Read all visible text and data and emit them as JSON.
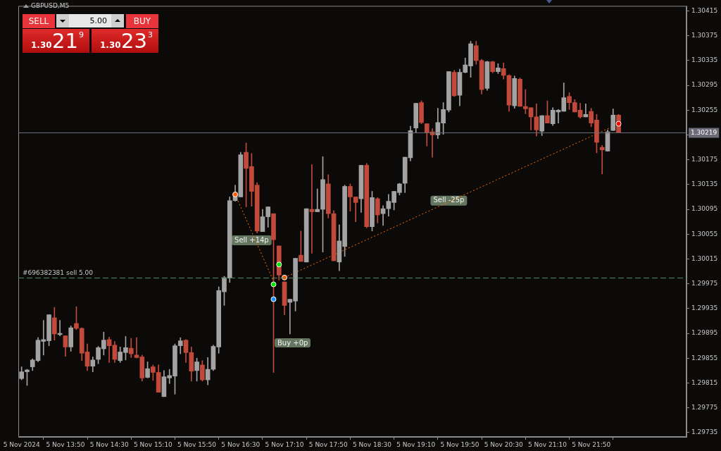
{
  "chart_data": {
    "type": "candlestick",
    "title": "GBPUSD,M5",
    "x": [
      "2024-11-05T13:10",
      "2024-11-05T13:15",
      "2024-11-05T13:20",
      "2024-11-05T13:25",
      "2024-11-05T13:30",
      "2024-11-05T13:35",
      "2024-11-05T13:40",
      "2024-11-05T13:45",
      "2024-11-05T13:50",
      "2024-11-05T13:55",
      "2024-11-05T14:00",
      "2024-11-05T14:05",
      "2024-11-05T14:10",
      "2024-11-05T14:15",
      "2024-11-05T14:20",
      "2024-11-05T14:25",
      "2024-11-05T14:30",
      "2024-11-05T14:35",
      "2024-11-05T14:40",
      "2024-11-05T14:45",
      "2024-11-05T14:50",
      "2024-11-05T14:55",
      "2024-11-05T15:00",
      "2024-11-05T15:05",
      "2024-11-05T15:10",
      "2024-11-05T15:15",
      "2024-11-05T15:20",
      "2024-11-05T15:25",
      "2024-11-05T15:30",
      "2024-11-05T15:35",
      "2024-11-05T15:40",
      "2024-11-05T15:45",
      "2024-11-05T15:50",
      "2024-11-05T15:55",
      "2024-11-05T16:00",
      "2024-11-05T16:05",
      "2024-11-05T16:10",
      "2024-11-05T16:15",
      "2024-11-05T16:20",
      "2024-11-05T16:25",
      "2024-11-05T16:30",
      "2024-11-05T16:35",
      "2024-11-05T16:40",
      "2024-11-05T16:45",
      "2024-11-05T16:50",
      "2024-11-05T16:55",
      "2024-11-05T17:00",
      "2024-11-05T17:05",
      "2024-11-05T17:10",
      "2024-11-05T17:15",
      "2024-11-05T17:20",
      "2024-11-05T17:25",
      "2024-11-05T17:30",
      "2024-11-05T17:35",
      "2024-11-05T17:40",
      "2024-11-05T17:45",
      "2024-11-05T17:50",
      "2024-11-05T17:55",
      "2024-11-05T18:00",
      "2024-11-05T18:05",
      "2024-11-05T18:10",
      "2024-11-05T18:15",
      "2024-11-05T18:20",
      "2024-11-05T18:25",
      "2024-11-05T18:30",
      "2024-11-05T18:35",
      "2024-11-05T18:40",
      "2024-11-05T18:45",
      "2024-11-05T18:50",
      "2024-11-05T18:55",
      "2024-11-05T19:00",
      "2024-11-05T19:05",
      "2024-11-05T19:10",
      "2024-11-05T19:15",
      "2024-11-05T19:20",
      "2024-11-05T19:25",
      "2024-11-05T19:30",
      "2024-11-05T19:35",
      "2024-11-05T19:40",
      "2024-11-05T19:45",
      "2024-11-05T19:50",
      "2024-11-05T19:55",
      "2024-11-05T20:00",
      "2024-11-05T20:05",
      "2024-11-05T20:10",
      "2024-11-05T20:15",
      "2024-11-05T20:20",
      "2024-11-05T20:25",
      "2024-11-05T20:30",
      "2024-11-05T20:35",
      "2024-11-05T20:40",
      "2024-11-05T20:45",
      "2024-11-05T20:50",
      "2024-11-05T20:55",
      "2024-11-05T21:00",
      "2024-11-05T21:05",
      "2024-11-05T21:10",
      "2024-11-05T21:15",
      "2024-11-05T21:20",
      "2024-11-05T21:25",
      "2024-11-05T21:30",
      "2024-11-05T21:35",
      "2024-11-05T21:40",
      "2024-11-05T21:45",
      "2024-11-05T21:50",
      "2024-11-05T21:55",
      "2024-11-05T22:00",
      "2024-11-05T22:05",
      "2024-11-05T22:10",
      "2024-11-05T22:15"
    ],
    "ohlc": [
      [
        1.29822,
        1.29841,
        1.2982,
        1.29833
      ],
      [
        1.29833,
        1.29837,
        1.29811,
        1.29836
      ],
      [
        1.29841,
        1.29854,
        1.29835,
        1.29852
      ],
      [
        1.29851,
        1.29888,
        1.29849,
        1.29884
      ],
      [
        1.29882,
        1.29916,
        1.2986,
        1.29885
      ],
      [
        1.29883,
        1.29925,
        1.29875,
        1.29925
      ],
      [
        1.2992,
        1.29937,
        1.29884,
        1.29894
      ],
      [
        1.29893,
        1.29916,
        1.29891,
        1.29895
      ],
      [
        1.29891,
        1.29891,
        1.29858,
        1.29873
      ],
      [
        1.29873,
        1.29907,
        1.29866,
        1.29904
      ],
      [
        1.29911,
        1.29938,
        1.29901,
        1.29903
      ],
      [
        1.29903,
        1.29904,
        1.29851,
        1.29863
      ],
      [
        1.29865,
        1.29878,
        1.29835,
        1.29842
      ],
      [
        1.29842,
        1.29857,
        1.29833,
        1.29852
      ],
      [
        1.29853,
        1.29874,
        1.29846,
        1.29872
      ],
      [
        1.2987,
        1.29897,
        1.2986,
        1.29884
      ],
      [
        1.29885,
        1.29889,
        1.29848,
        1.29875
      ],
      [
        1.29876,
        1.29882,
        1.29848,
        1.29853
      ],
      [
        1.29851,
        1.29873,
        1.29848,
        1.29865
      ],
      [
        1.29864,
        1.2989,
        1.29852,
        1.29872
      ],
      [
        1.29871,
        1.29887,
        1.29856,
        1.29862
      ],
      [
        1.2986,
        1.29888,
        1.29855,
        1.29856
      ],
      [
        1.29857,
        1.2986,
        1.29818,
        1.29823
      ],
      [
        1.29824,
        1.29849,
        1.29823,
        1.29838
      ],
      [
        1.29841,
        1.29844,
        1.29819,
        1.29832
      ],
      [
        1.29832,
        1.29844,
        1.298,
        1.298
      ],
      [
        1.29793,
        1.29835,
        1.29793,
        1.29825
      ],
      [
        1.29823,
        1.29837,
        1.29814,
        1.29827
      ],
      [
        1.29826,
        1.29878,
        1.29797,
        1.29875
      ],
      [
        1.29875,
        1.29888,
        1.29862,
        1.29883
      ],
      [
        1.29884,
        1.29885,
        1.29848,
        1.29864
      ],
      [
        1.29864,
        1.29873,
        1.29818,
        1.29834
      ],
      [
        1.29835,
        1.29855,
        1.29818,
        1.29849
      ],
      [
        1.29844,
        1.29851,
        1.29818,
        1.2982
      ],
      [
        1.2982,
        1.29856,
        1.29812,
        1.29837
      ],
      [
        1.29837,
        1.29876,
        1.29835,
        1.29874
      ],
      [
        1.29873,
        1.2997,
        1.29863,
        1.29964
      ],
      [
        1.29962,
        1.29987,
        1.2994,
        1.29985
      ],
      [
        1.29984,
        1.30115,
        1.29977,
        1.30109
      ],
      [
        1.30109,
        1.30134,
        1.30108,
        1.30121
      ],
      [
        1.30115,
        1.30187,
        1.30115,
        1.30183
      ],
      [
        1.30187,
        1.30202,
        1.30099,
        1.30161
      ],
      [
        1.30164,
        1.30185,
        1.301,
        1.30124
      ],
      [
        1.30134,
        1.30138,
        1.30057,
        1.3006
      ],
      [
        1.30059,
        1.30095,
        1.30059,
        1.30083
      ],
      [
        1.30083,
        1.30099,
        1.30066,
        1.30099
      ],
      [
        1.30088,
        1.30088,
        1.29832,
        1.30046
      ],
      [
        1.30036,
        1.30036,
        1.29981,
        1.29989
      ],
      [
        1.29978,
        1.29978,
        1.29925,
        1.2994
      ],
      [
        1.29945,
        1.2995,
        1.29894,
        1.2995
      ],
      [
        1.29947,
        1.30016,
        1.29931,
        1.30016
      ],
      [
        1.30021,
        1.3006,
        1.30011,
        1.30011
      ],
      [
        1.3001,
        1.30096,
        1.3001,
        1.30096
      ],
      [
        1.30095,
        1.30167,
        1.30024,
        1.30091
      ],
      [
        1.30091,
        1.30128,
        1.30091,
        1.30095
      ],
      [
        1.30095,
        1.3018,
        1.30026,
        1.30143
      ],
      [
        1.30136,
        1.30151,
        1.30081,
        1.30088
      ],
      [
        1.30088,
        1.30093,
        1.30012,
        1.30012
      ],
      [
        1.3001,
        1.3007,
        1.29996,
        1.30044
      ],
      [
        1.30035,
        1.30134,
        1.30019,
        1.30132
      ],
      [
        1.30132,
        1.30136,
        1.30092,
        1.30115
      ],
      [
        1.30115,
        1.30115,
        1.30075,
        1.30106
      ],
      [
        1.30112,
        1.30166,
        1.3009,
        1.30166
      ],
      [
        1.30166,
        1.30169,
        1.30065,
        1.30067
      ],
      [
        1.30067,
        1.30124,
        1.3006,
        1.30114
      ],
      [
        1.30112,
        1.30114,
        1.30073,
        1.30086
      ],
      [
        1.30088,
        1.30101,
        1.30069,
        1.30096
      ],
      [
        1.30096,
        1.30119,
        1.30084,
        1.30108
      ],
      [
        1.30106,
        1.30124,
        1.30094,
        1.30124
      ],
      [
        1.30122,
        1.30137,
        1.30118,
        1.30136
      ],
      [
        1.30137,
        1.30179,
        1.30122,
        1.30179
      ],
      [
        1.30178,
        1.30229,
        1.30173,
        1.30222
      ],
      [
        1.30226,
        1.30266,
        1.30219,
        1.30266
      ],
      [
        1.30267,
        1.3027,
        1.30233,
        1.30235
      ],
      [
        1.30233,
        1.30233,
        1.30197,
        1.30219
      ],
      [
        1.3022,
        1.30225,
        1.30179,
        1.30215
      ],
      [
        1.30215,
        1.30258,
        1.30209,
        1.30235
      ],
      [
        1.30234,
        1.30267,
        1.30216,
        1.30256
      ],
      [
        1.30255,
        1.30317,
        1.30252,
        1.30317
      ],
      [
        1.30316,
        1.30319,
        1.30277,
        1.30278
      ],
      [
        1.30279,
        1.30321,
        1.30262,
        1.30316
      ],
      [
        1.30316,
        1.30339,
        1.30315,
        1.30328
      ],
      [
        1.30326,
        1.30366,
        1.30308,
        1.30362
      ],
      [
        1.30359,
        1.30366,
        1.30329,
        1.30335
      ],
      [
        1.30335,
        1.30337,
        1.30281,
        1.30288
      ],
      [
        1.3029,
        1.30334,
        1.30287,
        1.30333
      ],
      [
        1.30333,
        1.30334,
        1.30315,
        1.30317
      ],
      [
        1.30317,
        1.3033,
        1.30314,
        1.30323
      ],
      [
        1.30322,
        1.30331,
        1.30305,
        1.30311
      ],
      [
        1.30311,
        1.30312,
        1.30253,
        1.30263
      ],
      [
        1.30262,
        1.3031,
        1.30258,
        1.30306
      ],
      [
        1.30305,
        1.30307,
        1.30261,
        1.30261
      ],
      [
        1.30261,
        1.30288,
        1.30249,
        1.30257
      ],
      [
        1.30259,
        1.30259,
        1.30223,
        1.30244
      ],
      [
        1.30244,
        1.30265,
        1.30213,
        1.30223
      ],
      [
        1.30221,
        1.30246,
        1.30214,
        1.30246
      ],
      [
        1.30246,
        1.3027,
        1.30234,
        1.30234
      ],
      [
        1.30233,
        1.30259,
        1.3023,
        1.30255
      ],
      [
        1.30252,
        1.30256,
        1.30234,
        1.30255
      ],
      [
        1.30253,
        1.30299,
        1.30253,
        1.30275
      ],
      [
        1.30277,
        1.30283,
        1.30256,
        1.30267
      ],
      [
        1.30267,
        1.30272,
        1.30252,
        1.30252
      ],
      [
        1.30255,
        1.30266,
        1.30242,
        1.30244
      ],
      [
        1.30244,
        1.30265,
        1.30244,
        1.30248
      ],
      [
        1.30253,
        1.30258,
        1.30228,
        1.30234
      ],
      [
        1.30239,
        1.30248,
        1.30186,
        1.30203
      ],
      [
        1.30195,
        1.30198,
        1.30152,
        1.30191
      ],
      [
        1.30189,
        1.30223,
        1.30189,
        1.3022
      ],
      [
        1.30222,
        1.30257,
        1.30222,
        1.30247
      ],
      [
        1.30247,
        1.30248,
        1.30219,
        1.30219
      ]
    ],
    "colors": [
      "#a3a3a3",
      "#a3a3a3",
      "#a3a3a3",
      "#a3a3a3",
      "#a3a3a3",
      "#a3a3a3",
      "#c24a3b",
      "#a3a3a3",
      "#c24a3b",
      "#a3a3a3",
      "#c24a3b",
      "#c24a3b",
      "#c24a3b",
      "#a3a3a3",
      "#a3a3a3",
      "#a3a3a3",
      "#c24a3b",
      "#c24a3b",
      "#a3a3a3",
      "#a3a3a3",
      "#c24a3b",
      "#c24a3b",
      "#c24a3b",
      "#a3a3a3",
      "#c24a3b",
      "#c24a3b",
      "#a3a3a3",
      "#a3a3a3",
      "#a3a3a3",
      "#a3a3a3",
      "#c24a3b",
      "#c24a3b",
      "#a3a3a3",
      "#c24a3b",
      "#a3a3a3",
      "#a3a3a3",
      "#a3a3a3",
      "#a3a3a3",
      "#a3a3a3",
      "#a3a3a3",
      "#a3a3a3",
      "#c24a3b",
      "#c24a3b",
      "#c24a3b",
      "#a3a3a3",
      "#a3a3a3",
      "#c24a3b",
      "#c24a3b",
      "#c24a3b",
      "#a3a3a3",
      "#a3a3a3",
      "#c24a3b",
      "#a3a3a3",
      "#c24a3b",
      "#a3a3a3",
      "#a3a3a3",
      "#c24a3b",
      "#c24a3b",
      "#a3a3a3",
      "#a3a3a3",
      "#c24a3b",
      "#c24a3b",
      "#a3a3a3",
      "#c24a3b",
      "#a3a3a3",
      "#c24a3b",
      "#a3a3a3",
      "#a3a3a3",
      "#a3a3a3",
      "#a3a3a3",
      "#a3a3a3",
      "#a3a3a3",
      "#a3a3a3",
      "#c24a3b",
      "#c24a3b",
      "#c24a3b",
      "#a3a3a3",
      "#a3a3a3",
      "#a3a3a3",
      "#c24a3b",
      "#a3a3a3",
      "#a3a3a3",
      "#a3a3a3",
      "#c24a3b",
      "#c24a3b",
      "#a3a3a3",
      "#c24a3b",
      "#a3a3a3",
      "#c24a3b",
      "#c24a3b",
      "#a3a3a3",
      "#c24a3b",
      "#c24a3b",
      "#c24a3b",
      "#c24a3b",
      "#a3a3a3",
      "#c24a3b",
      "#a3a3a3",
      "#a3a3a3",
      "#a3a3a3",
      "#c24a3b",
      "#c24a3b",
      "#c24a3b",
      "#a3a3a3",
      "#c24a3b",
      "#c24a3b",
      "#c24a3b",
      "#a3a3a3",
      "#a3a3a3",
      "#c24a3b"
    ],
    "series": [
      {
        "type": "line",
        "color": "#ff6a00",
        "line_style": "dotted",
        "x": [
          "2024-11-05T16:25",
          "2024-11-05T17:00"
        ],
        "values": [
          1.30119,
          1.29979
        ]
      },
      {
        "type": "line",
        "color": "#ff6a00",
        "line_style": "dotted",
        "x": [
          "2024-11-05T17:10",
          "2024-11-05T22:15"
        ],
        "values": [
          1.29985,
          1.30233
        ]
      },
      {
        "type": "scatter",
        "marker": "circle",
        "color": "#ff5a00",
        "x": [
          "2024-11-05T16:25",
          "2024-11-05T17:10"
        ],
        "values": [
          1.30119,
          1.29985
        ]
      },
      {
        "type": "scatter",
        "marker": "circle",
        "color": "#1e8fff",
        "x": [
          "2024-11-05T17:00"
        ],
        "values": [
          1.2995
        ]
      },
      {
        "type": "scatter",
        "marker": "circle",
        "color": "#00e600",
        "x": [
          "2024-11-05T17:05",
          "2024-11-05T17:00"
        ],
        "values": [
          1.30006,
          1.29974
        ]
      },
      {
        "type": "scatter",
        "marker": "circle",
        "color": "#ff0000",
        "x": [
          "2024-11-05T22:15"
        ],
        "values": [
          1.30233
        ]
      }
    ],
    "xlim": [
      "2024-11-05T13:07",
      "2024-11-05T23:17"
    ],
    "xticks": [
      {
        "value": "2024-11-05T13:10",
        "label": "5 Nov 2024"
      },
      {
        "value": "2024-11-05T13:50",
        "label": "5 Nov 13:50"
      },
      {
        "value": "2024-11-05T14:30",
        "label": "5 Nov 14:30"
      },
      {
        "value": "2024-11-05T15:10",
        "label": "5 Nov 15:10"
      },
      {
        "value": "2024-11-05T15:50",
        "label": "5 Nov 15:50"
      },
      {
        "value": "2024-11-05T16:30",
        "label": "5 Nov 16:30"
      },
      {
        "value": "2024-11-05T17:10",
        "label": "5 Nov 17:10"
      },
      {
        "value": "2024-11-05T17:50",
        "label": "5 Nov 17:50"
      },
      {
        "value": "2024-11-05T18:30",
        "label": "5 Nov 18:30"
      },
      {
        "value": "2024-11-05T19:10",
        "label": "5 Nov 19:10"
      },
      {
        "value": "2024-11-05T19:50",
        "label": "5 Nov 19:50"
      },
      {
        "value": "2024-11-05T20:30",
        "label": "5 Nov 20:30"
      },
      {
        "value": "2024-11-05T21:10",
        "label": "5 Nov 21:10"
      },
      {
        "value": "2024-11-05T21:50",
        "label": "5 Nov 21:50"
      }
    ],
    "ylim": [
      1.29728,
      1.30423
    ],
    "yticks": [
      1.29735,
      1.29775,
      1.29815,
      1.29855,
      1.29895,
      1.29935,
      1.29975,
      1.30015,
      1.30055,
      1.30095,
      1.30135,
      1.30175,
      {
        "value": 1.30215,
        "label": null
      },
      1.30255,
      1.30295,
      1.30335,
      1.30375,
      1.30415
    ],
    "ref_lines": [
      {
        "axis": "y",
        "value": 1.30219,
        "label": "1.30219",
        "color": "#6b6b78",
        "line_style": "solid"
      },
      {
        "axis": "y",
        "value": 1.29985,
        "label": "#696382381 sell 5.00",
        "color": "#4f8a68",
        "line_style": "dashed"
      }
    ],
    "annotations": [
      "SELL",
      "5.00",
      "BUY",
      "1.30",
      "21",
      "9",
      "1.30",
      "23",
      "3",
      {
        "text": "Sell +14p",
        "x": "2024-11-05T16:40",
        "y": 1.30045
      },
      "Buy +0p",
      {
        "text": "Sell -25p",
        "x": "2024-11-05T19:40",
        "y": 1.30109
      }
    ]
  }
}
